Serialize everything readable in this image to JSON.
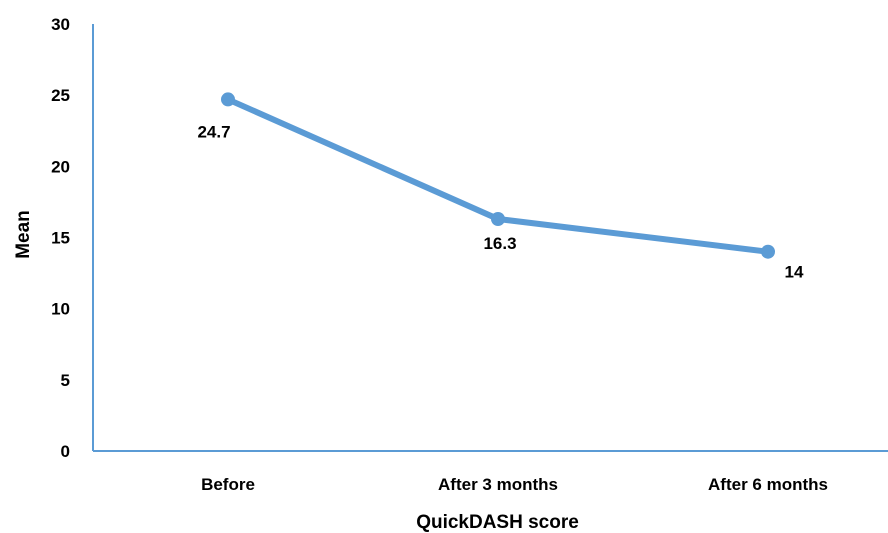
{
  "chart_data": {
    "type": "line",
    "categories": [
      "Before",
      "After 3 months",
      "After 6 months"
    ],
    "series": [
      {
        "values": [
          24.7,
          16.3,
          14
        ],
        "color": "#5B9BD5"
      }
    ],
    "data_labels": [
      "24.7",
      "16.3",
      "14"
    ],
    "title": "",
    "xlabel": "QuickDASH score",
    "ylabel": "Mean",
    "ylim": [
      0,
      30
    ],
    "yticks": [
      0,
      5,
      10,
      15,
      20,
      25,
      30
    ],
    "ytick_labels": [
      "0",
      "5",
      "10",
      "15",
      "20",
      "25",
      "30"
    ],
    "grid": false,
    "legend": false,
    "axis_color": "#5B9BD5"
  }
}
